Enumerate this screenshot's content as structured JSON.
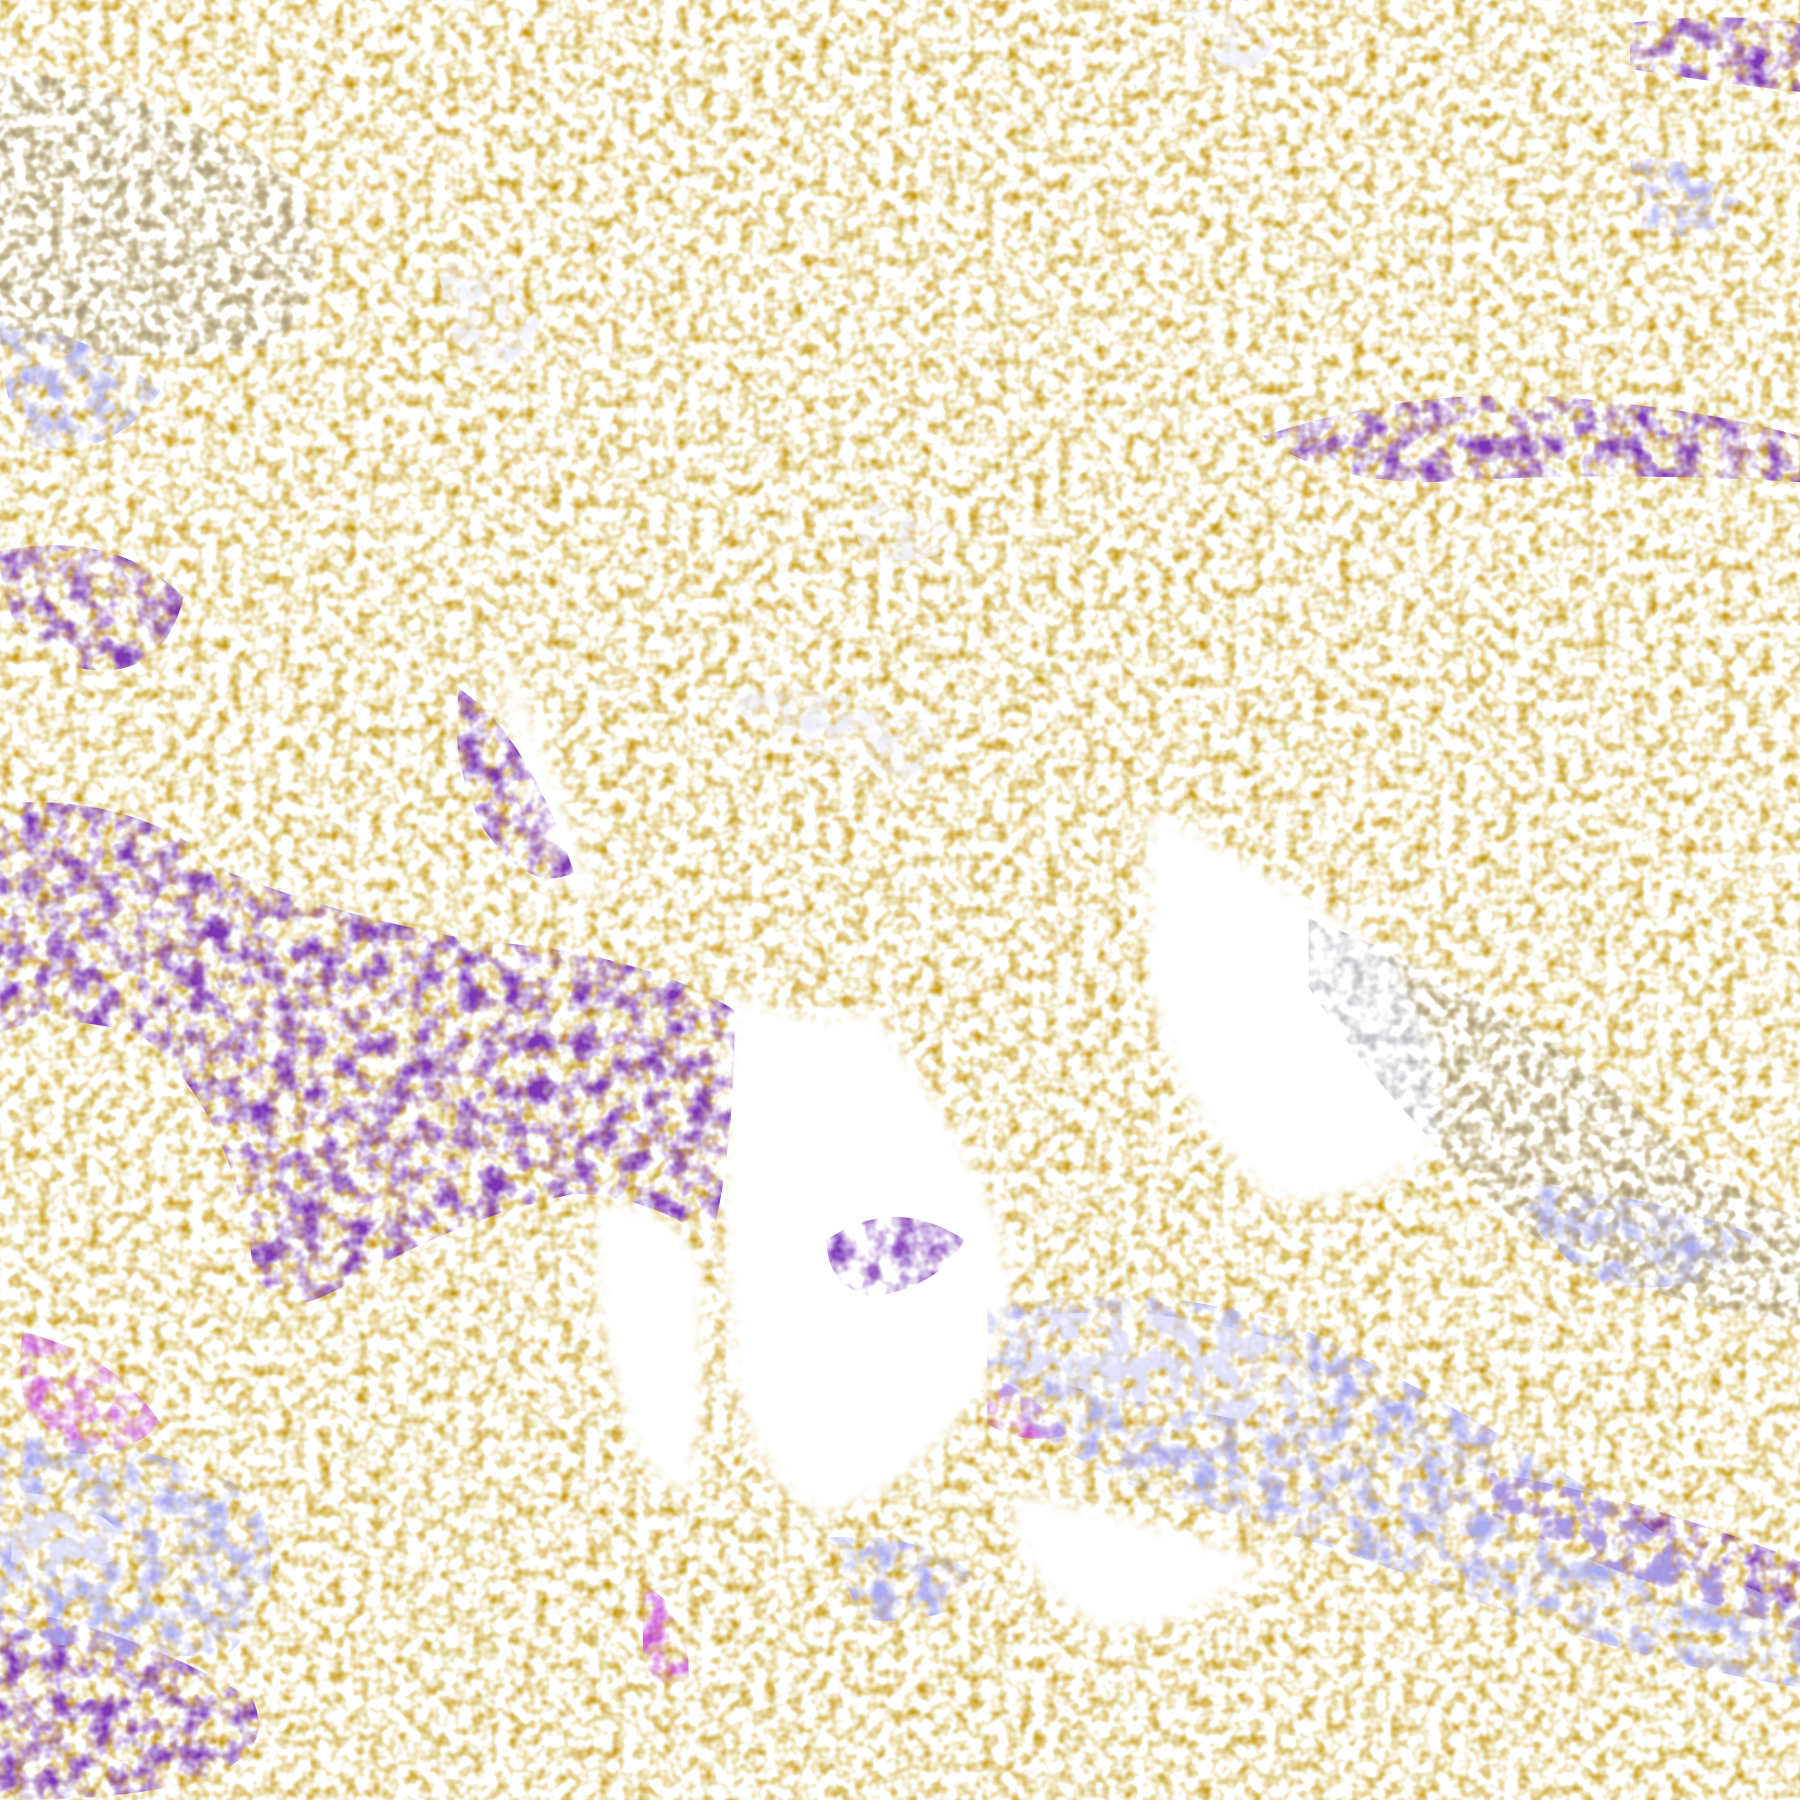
{
  "image": {
    "kind": "false-color infrared satellite composite",
    "colors": {
      "background": "#ffffff",
      "warm_surface": "#c89a10",
      "low_cloud": "#7b35b5",
      "mid_cloud": "#c94fd8",
      "high_cloud": "#a9aaf0",
      "cold_cloud": "#eeeeff",
      "haze": "#9a9aa6"
    }
  }
}
